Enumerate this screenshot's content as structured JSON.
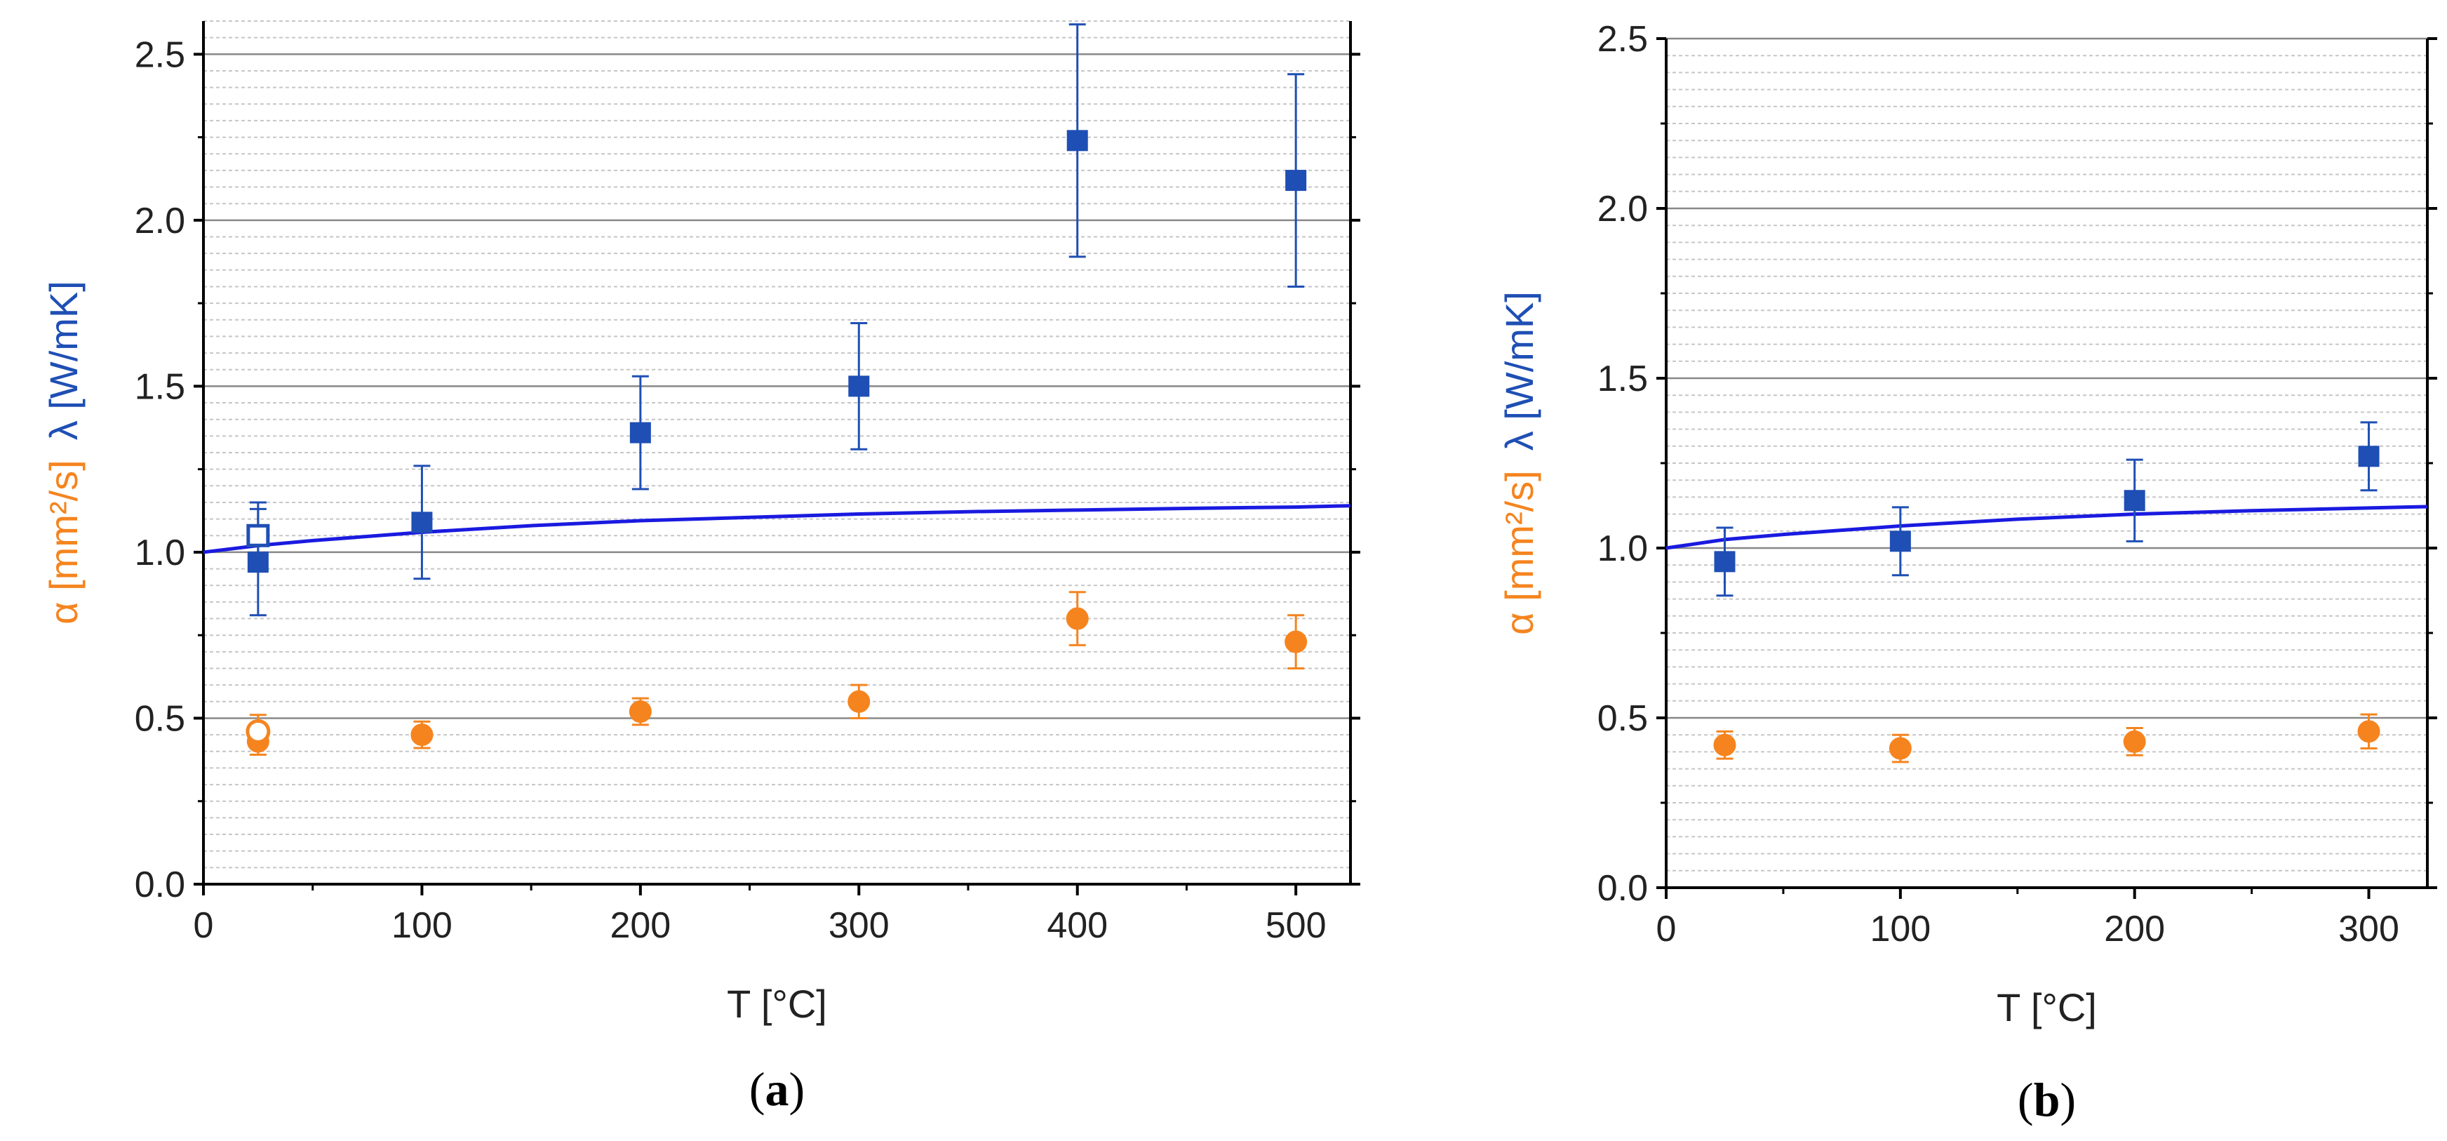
{
  "colors": {
    "lambda": "#1f4fb4",
    "alpha": "#f5841f",
    "fit": "#1a1ae0",
    "grid_major": "#888888",
    "grid_minor": "#c6c6c6",
    "axis": "#000000"
  },
  "chart_data": [
    {
      "id": "a",
      "type": "scatter",
      "caption": {
        "open": "(",
        "letter": "a",
        "close": ")"
      },
      "xlabel": "T [°C]",
      "ylabel": {
        "alpha": "α [mm²/s]",
        "lambda": "λ [W/mK]"
      },
      "xlim": [
        0,
        525
      ],
      "ylim": [
        0,
        2.6
      ],
      "xticks": [
        0,
        100,
        200,
        300,
        400,
        500
      ],
      "xtick_labels": [
        "0",
        "100",
        "200",
        "300",
        "400",
        "500"
      ],
      "yticks": [
        0,
        0.5,
        1.0,
        1.5,
        2.0,
        2.5
      ],
      "ytick_labels": [
        "0.0",
        "0.5",
        "1.0",
        "1.5",
        "2.0",
        "2.5"
      ],
      "x_minor_step": 50,
      "y_minor_step": 0.05,
      "fit": {
        "name": "λ fit",
        "x": [
          0,
          25,
          50,
          100,
          150,
          200,
          250,
          300,
          350,
          400,
          450,
          500,
          525
        ],
        "y": [
          1.0,
          1.02,
          1.035,
          1.06,
          1.08,
          1.095,
          1.105,
          1.115,
          1.122,
          1.127,
          1.132,
          1.136,
          1.14
        ]
      },
      "series": [
        {
          "name": "λ",
          "marker": "square",
          "filled": true,
          "x": [
            25,
            100,
            200,
            300,
            400,
            500
          ],
          "y": [
            0.97,
            1.09,
            1.36,
            1.5,
            2.24,
            2.12
          ],
          "err": [
            0.16,
            0.17,
            0.17,
            0.19,
            0.35,
            0.32
          ]
        },
        {
          "name": "λ (open)",
          "marker": "square",
          "filled": false,
          "x": [
            25
          ],
          "y": [
            1.05
          ],
          "err": [
            0.1
          ]
        },
        {
          "name": "α",
          "marker": "circle",
          "filled": true,
          "x": [
            25,
            100,
            200,
            300,
            400,
            500
          ],
          "y": [
            0.43,
            0.45,
            0.52,
            0.55,
            0.8,
            0.73
          ],
          "err": [
            0.04,
            0.04,
            0.04,
            0.05,
            0.08,
            0.08
          ]
        },
        {
          "name": "α (open)",
          "marker": "circle",
          "filled": false,
          "x": [
            25
          ],
          "y": [
            0.46
          ],
          "err": [
            0.05
          ]
        }
      ]
    },
    {
      "id": "b",
      "type": "scatter",
      "caption": {
        "open": "(",
        "letter": "b",
        "close": ")"
      },
      "xlabel": "T [°C]",
      "ylabel": {
        "alpha": "α [mm²/s]",
        "lambda": "λ [W/mK]"
      },
      "xlim": [
        0,
        325
      ],
      "ylim": [
        0,
        2.5
      ],
      "xticks": [
        0,
        100,
        200,
        300
      ],
      "xtick_labels": [
        "0",
        "100",
        "200",
        "300"
      ],
      "yticks": [
        0,
        0.5,
        1.0,
        1.5,
        2.0,
        2.5
      ],
      "ytick_labels": [
        "0.0",
        "0.5",
        "1.0",
        "1.5",
        "2.0",
        "2.5"
      ],
      "x_minor_step": 50,
      "y_minor_step": 0.05,
      "fit": {
        "name": "λ fit",
        "x": [
          0,
          25,
          50,
          100,
          150,
          200,
          250,
          300,
          325
        ],
        "y": [
          1.0,
          1.025,
          1.04,
          1.065,
          1.085,
          1.1,
          1.11,
          1.118,
          1.122
        ]
      },
      "series": [
        {
          "name": "λ",
          "marker": "square",
          "filled": true,
          "x": [
            25,
            100,
            200,
            300
          ],
          "y": [
            0.96,
            1.02,
            1.14,
            1.27
          ],
          "err": [
            0.1,
            0.1,
            0.12,
            0.1
          ]
        },
        {
          "name": "α",
          "marker": "circle",
          "filled": true,
          "x": [
            25,
            100,
            200,
            300
          ],
          "y": [
            0.42,
            0.41,
            0.43,
            0.46
          ],
          "err": [
            0.04,
            0.04,
            0.04,
            0.05
          ]
        }
      ]
    }
  ]
}
